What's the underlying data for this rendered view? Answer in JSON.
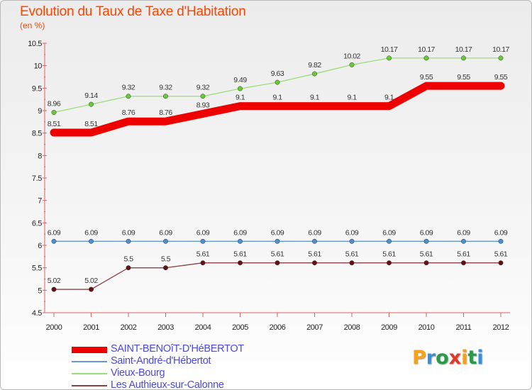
{
  "title": "Evolution du Taux de Taxe d'Habitation",
  "unit": "(en %)",
  "logo": {
    "text": "Proxiti",
    "colors": [
      "#f5a21a",
      "#3a8fd9",
      "#2a9a4a",
      "#e03a2a",
      "#f5a21a",
      "#2a9a4a",
      "#3a8fd9"
    ]
  },
  "chart_data": {
    "type": "line",
    "title": "Evolution du Taux de Taxe d'Habitation",
    "ylabel": "(en %)",
    "xlabel": "",
    "x": [
      "2000",
      "2001",
      "2002",
      "2003",
      "2004",
      "2005",
      "2006",
      "2007",
      "2008",
      "2009",
      "2010",
      "2011",
      "2012"
    ],
    "ylim": [
      4.5,
      10.5
    ],
    "yticks": [
      "4.5",
      "5",
      "5.5",
      "6",
      "6.5",
      "7",
      "7.5",
      "8",
      "8.5",
      "9",
      "9.5",
      "10",
      "10.5"
    ],
    "grid": false,
    "legend": "bottom-left",
    "series": [
      {
        "name": "SAINT-BENOîT-D'HéBERTOT",
        "color": "#ee0000",
        "width": "thick",
        "values": [
          8.51,
          8.51,
          8.76,
          8.76,
          8.93,
          9.1,
          9.1,
          9.1,
          9.1,
          9.1,
          9.55,
          9.55,
          9.55
        ],
        "labels": [
          "8.51",
          "8.51",
          "8.76",
          "8.76",
          "8.93",
          "9.1",
          "9.1",
          "9.1",
          "9.1",
          "9.1",
          "9.55",
          "9.55",
          "9.55"
        ]
      },
      {
        "name": "Saint-André-d'Hébertot",
        "color": "#6699cc",
        "marker": "#4f8fd0",
        "values": [
          6.09,
          6.09,
          6.09,
          6.09,
          6.09,
          6.09,
          6.09,
          6.09,
          6.09,
          6.09,
          6.09,
          6.09,
          6.09
        ],
        "labels": [
          "6.09",
          "6.09",
          "6.09",
          "6.09",
          "6.09",
          "6.09",
          "6.09",
          "6.09",
          "6.09",
          "6.09",
          "6.09",
          "6.09",
          "6.09"
        ]
      },
      {
        "name": "Vieux-Bourg",
        "color": "#99dd77",
        "marker": "#66cc33",
        "values": [
          8.96,
          9.14,
          9.32,
          9.32,
          9.32,
          9.49,
          9.63,
          9.82,
          10.02,
          10.17,
          10.17,
          10.17,
          10.17
        ],
        "labels": [
          "8.96",
          "9.14",
          "9.32",
          "9.32",
          "9.32",
          "9.49",
          "9.63",
          "9.82",
          "10.02",
          "10.17",
          "10.17",
          "10.17",
          "10.17"
        ]
      },
      {
        "name": "Les Authieux-sur-Calonne",
        "color": "#884444",
        "marker": "#661111",
        "values": [
          5.02,
          5.02,
          5.5,
          5.5,
          5.61,
          5.61,
          5.61,
          5.61,
          5.61,
          5.61,
          5.61,
          5.61,
          5.61
        ],
        "labels": [
          "5.02",
          "5.02",
          "5.5",
          "5.5",
          "5.61",
          "5.61",
          "5.61",
          "5.61",
          "5.61",
          "5.61",
          "5.61",
          "5.61",
          "5.61"
        ]
      }
    ]
  }
}
